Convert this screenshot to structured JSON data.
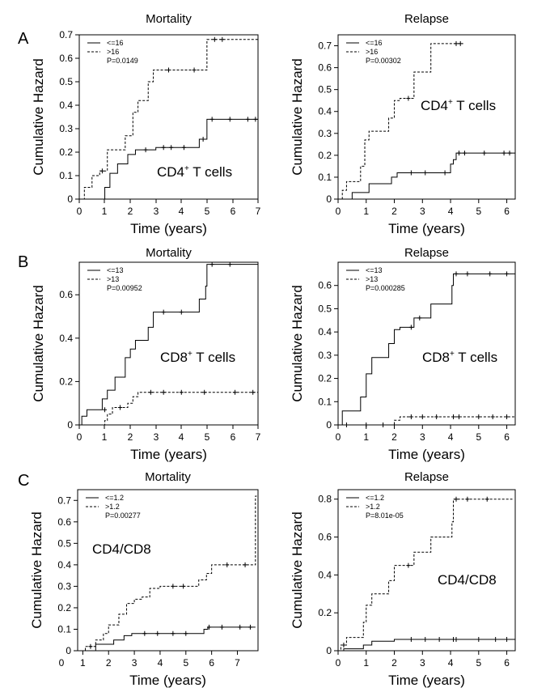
{
  "panels": [
    "A",
    "B",
    "C"
  ],
  "chart_data": [
    {
      "type": "line",
      "panel": "A",
      "title": "Mortality",
      "xlabel": "Time (years)",
      "ylabel": "Cumulative Hazard",
      "xlim": [
        0,
        7
      ],
      "ylim": [
        0,
        0.7
      ],
      "xticks": [
        0,
        1,
        2,
        3,
        4,
        5,
        6,
        7
      ],
      "yticks": [
        0,
        0.1,
        0.2,
        0.3,
        0.4,
        0.5,
        0.6,
        0.7
      ],
      "ytick_labels": [
        "0",
        "0.1",
        "0.2",
        "0.3",
        "0.4",
        "0.5",
        "0.6",
        "0.7"
      ],
      "legend_position": "top-left",
      "pvalue": "P=0.0149",
      "cell_label": "CD4",
      "cell_sup": "+",
      "cell_suffix": " T cells",
      "series": [
        {
          "name": "<=16",
          "style": "solid",
          "x": [
            0,
            1,
            1.2,
            1.5,
            1.9,
            2.2,
            3.0,
            4.7,
            5.0,
            7.0
          ],
          "y": [
            0,
            0.05,
            0.11,
            0.15,
            0.19,
            0.21,
            0.22,
            0.255,
            0.34,
            0.34
          ],
          "censored": [
            [
              2.6,
              0.21
            ],
            [
              3.3,
              0.22
            ],
            [
              3.6,
              0.22
            ],
            [
              4.1,
              0.22
            ],
            [
              4.85,
              0.255
            ],
            [
              5.2,
              0.34
            ],
            [
              5.9,
              0.34
            ],
            [
              6.6,
              0.34
            ],
            [
              6.9,
              0.34
            ]
          ]
        },
        {
          "name": ">16",
          "style": "dashed",
          "x": [
            0,
            0.2,
            0.5,
            0.8,
            1.1,
            1.8,
            2.1,
            2.3,
            2.7,
            2.9,
            5.0,
            7.0
          ],
          "y": [
            0,
            0.05,
            0.1,
            0.12,
            0.21,
            0.27,
            0.37,
            0.42,
            0.5,
            0.55,
            0.68,
            0.68
          ],
          "censored": [
            [
              0.9,
              0.12
            ],
            [
              3.5,
              0.55
            ],
            [
              4.5,
              0.55
            ],
            [
              5.3,
              0.68
            ],
            [
              5.6,
              0.68
            ]
          ]
        }
      ]
    },
    {
      "type": "line",
      "panel": "A",
      "title": "Relapse",
      "xlabel": "Time (years)",
      "ylabel": "Cumulative Hazard",
      "xlim": [
        0,
        6.3
      ],
      "ylim": [
        0,
        0.75
      ],
      "xticks": [
        0,
        1,
        2,
        3,
        4,
        5,
        6
      ],
      "yticks": [
        0,
        0.1,
        0.2,
        0.3,
        0.4,
        0.5,
        0.6,
        0.7
      ],
      "ytick_labels": [
        "0",
        "0.1",
        "0.2",
        "0.3",
        "0.4",
        "0.5",
        "0.6",
        "0.7"
      ],
      "legend_position": "top-left",
      "pvalue": "P=0.00302",
      "cell_label": "CD4",
      "cell_sup": "+",
      "cell_suffix": " T cells",
      "series": [
        {
          "name": "<=16",
          "style": "solid",
          "x": [
            0,
            0.5,
            1.1,
            1.9,
            2.1,
            4.0,
            4.1,
            4.2,
            6.3
          ],
          "y": [
            0,
            0.03,
            0.07,
            0.1,
            0.12,
            0.16,
            0.18,
            0.21,
            0.21
          ],
          "censored": [
            [
              2.6,
              0.12
            ],
            [
              3.1,
              0.12
            ],
            [
              3.8,
              0.12
            ],
            [
              4.3,
              0.21
            ],
            [
              4.5,
              0.21
            ],
            [
              5.2,
              0.21
            ],
            [
              5.9,
              0.21
            ],
            [
              6.1,
              0.21
            ]
          ]
        },
        {
          "name": ">16",
          "style": "dashed",
          "x": [
            0,
            0.15,
            0.3,
            0.8,
            0.95,
            1.1,
            1.8,
            2.0,
            2.2,
            2.7,
            3.3,
            4.1,
            4.45
          ],
          "y": [
            0,
            0.04,
            0.08,
            0.15,
            0.27,
            0.31,
            0.37,
            0.45,
            0.46,
            0.58,
            0.71,
            0.71,
            0.71
          ],
          "censored": [
            [
              2.5,
              0.46
            ],
            [
              4.2,
              0.71
            ],
            [
              4.35,
              0.71
            ]
          ]
        }
      ]
    },
    {
      "type": "line",
      "panel": "B",
      "title": "Mortality",
      "xlabel": "Time (years)",
      "ylabel": "Cumulative Hazard",
      "xlim": [
        0,
        7
      ],
      "ylim": [
        0,
        0.75
      ],
      "xticks": [
        0,
        1,
        2,
        3,
        4,
        5,
        6,
        7
      ],
      "yticks": [
        0,
        0.2,
        0.4,
        0.6
      ],
      "ytick_labels": [
        "0",
        "0.2",
        "0.4",
        "0.6"
      ],
      "legend_position": "top-left",
      "pvalue": "P=0.00952",
      "cell_label": "CD8",
      "cell_sup": "+",
      "cell_suffix": " T cells",
      "series": [
        {
          "name": "<=13",
          "style": "solid",
          "x": [
            0,
            0.1,
            0.3,
            0.9,
            1.1,
            1.4,
            1.8,
            2.0,
            2.2,
            2.7,
            2.9,
            4.7,
            4.95,
            5.0,
            7.0
          ],
          "y": [
            0,
            0.04,
            0.07,
            0.12,
            0.16,
            0.22,
            0.31,
            0.35,
            0.39,
            0.45,
            0.52,
            0.58,
            0.64,
            0.74,
            0.74
          ],
          "censored": [
            [
              1.0,
              0.07
            ],
            [
              3.3,
              0.52
            ],
            [
              4.0,
              0.52
            ],
            [
              5.2,
              0.74
            ],
            [
              5.9,
              0.74
            ]
          ]
        },
        {
          "name": ">13",
          "style": "dashed",
          "x": [
            0,
            1.0,
            1.1,
            1.3,
            1.9,
            2.1,
            2.3,
            7.0
          ],
          "y": [
            0,
            0.02,
            0.05,
            0.08,
            0.1,
            0.13,
            0.15,
            0.15
          ],
          "censored": [
            [
              1.6,
              0.08
            ],
            [
              2.8,
              0.15
            ],
            [
              3.3,
              0.15
            ],
            [
              4.0,
              0.15
            ],
            [
              4.9,
              0.15
            ],
            [
              6.1,
              0.15
            ],
            [
              6.8,
              0.15
            ]
          ]
        }
      ]
    },
    {
      "type": "line",
      "panel": "B",
      "title": "Relapse",
      "xlabel": "Time (years)",
      "ylabel": "Cumulative Hazard",
      "xlim": [
        0,
        6.3
      ],
      "ylim": [
        0,
        0.7
      ],
      "xticks": [
        0,
        1,
        2,
        3,
        4,
        5,
        6
      ],
      "yticks": [
        0,
        0.1,
        0.2,
        0.3,
        0.4,
        0.5,
        0.6
      ],
      "ytick_labels": [
        "0",
        "0.1",
        "0.2",
        "0.3",
        "0.4",
        "0.5",
        "0.6"
      ],
      "legend_position": "top-left",
      "pvalue": "P=0.000285",
      "cell_label": "CD8",
      "cell_sup": "+",
      "cell_suffix": " T cells",
      "series": [
        {
          "name": "<=13",
          "style": "solid",
          "x": [
            0,
            0.15,
            0.8,
            1.0,
            1.2,
            1.8,
            2.0,
            2.2,
            2.7,
            3.3,
            4.05,
            4.1,
            6.3
          ],
          "y": [
            0,
            0.06,
            0.12,
            0.22,
            0.29,
            0.35,
            0.41,
            0.42,
            0.46,
            0.52,
            0.6,
            0.65,
            0.65
          ],
          "censored": [
            [
              2.6,
              0.42
            ],
            [
              2.9,
              0.46
            ],
            [
              4.2,
              0.65
            ],
            [
              4.6,
              0.65
            ],
            [
              5.4,
              0.65
            ],
            [
              6.0,
              0.65
            ]
          ]
        },
        {
          "name": ">13",
          "style": "dashed",
          "x": [
            0,
            0.1,
            2.0,
            2.2,
            6.3
          ],
          "y": [
            0,
            0.0,
            0.02,
            0.035,
            0.035
          ],
          "censored": [
            [
              0.3,
              0.0
            ],
            [
              1.0,
              0.0
            ],
            [
              1.6,
              0.0
            ],
            [
              2.6,
              0.035
            ],
            [
              3.0,
              0.035
            ],
            [
              3.5,
              0.035
            ],
            [
              4.1,
              0.035
            ],
            [
              4.3,
              0.035
            ],
            [
              5.0,
              0.035
            ],
            [
              5.5,
              0.035
            ],
            [
              6.0,
              0.035
            ]
          ]
        }
      ]
    },
    {
      "type": "line",
      "panel": "C",
      "title": "Mortality",
      "xlabel": "Time (years)",
      "ylabel": "Cumulative Hazard",
      "xlim": [
        0.8,
        7.8
      ],
      "ylim": [
        0,
        0.75
      ],
      "xticks": [
        1,
        2,
        3,
        4,
        5,
        6,
        7
      ],
      "yticks": [
        0,
        0.1,
        0.2,
        0.3,
        0.4,
        0.5,
        0.6,
        0.7
      ],
      "ytick_labels": [
        "0",
        "0.1",
        "0.2",
        "0.3",
        "0.4",
        "0.5",
        "0.6",
        "0.7"
      ],
      "outside_tick": "0",
      "legend_position": "top-left",
      "pvalue": "P=0.00277",
      "cell_label": "CD4/CD8",
      "cell_sup": "",
      "cell_suffix": "",
      "series": [
        {
          "name": "<=1.2",
          "style": "solid",
          "x": [
            0.8,
            1.5,
            2.2,
            2.6,
            2.9,
            5.7,
            5.85,
            7.7
          ],
          "y": [
            0,
            0.03,
            0.05,
            0.07,
            0.08,
            0.1,
            0.11,
            0.11
          ],
          "censored": [
            [
              3.4,
              0.08
            ],
            [
              3.9,
              0.08
            ],
            [
              4.5,
              0.08
            ],
            [
              5.0,
              0.08
            ],
            [
              5.9,
              0.11
            ],
            [
              6.4,
              0.11
            ],
            [
              7.1,
              0.11
            ],
            [
              7.5,
              0.11
            ]
          ]
        },
        {
          "name": ">1.2",
          "style": "dashed",
          "x": [
            0.8,
            1.1,
            1.5,
            1.8,
            2.0,
            2.4,
            2.7,
            3.0,
            3.3,
            3.6,
            4.0,
            5.5,
            5.8,
            6.0,
            7.6,
            7.7,
            7.75
          ],
          "y": [
            0,
            0.02,
            0.05,
            0.08,
            0.12,
            0.17,
            0.22,
            0.24,
            0.25,
            0.29,
            0.3,
            0.33,
            0.36,
            0.4,
            0.4,
            0.72,
            0.72
          ],
          "censored": [
            [
              1.3,
              0.02
            ],
            [
              4.5,
              0.3
            ],
            [
              4.9,
              0.3
            ],
            [
              6.6,
              0.4
            ],
            [
              7.3,
              0.4
            ]
          ]
        }
      ]
    },
    {
      "type": "line",
      "panel": "C",
      "title": "Relapse",
      "xlabel": "Time (years)",
      "ylabel": "Cumulative Hazard",
      "xlim": [
        0,
        6.3
      ],
      "ylim": [
        0,
        0.85
      ],
      "xticks": [
        0,
        1,
        2,
        3,
        4,
        5,
        6
      ],
      "yticks": [
        0,
        0.2,
        0.4,
        0.6,
        0.8
      ],
      "ytick_labels": [
        "0",
        "0.2",
        "0.4",
        "0.6",
        "0.8"
      ],
      "legend_position": "top-left",
      "pvalue": "P=8.01e-05",
      "cell_label": "CD4/CD8",
      "cell_sup": "",
      "cell_suffix": "",
      "series": [
        {
          "name": "<=1.2",
          "style": "solid",
          "x": [
            0,
            0.2,
            0.9,
            1.2,
            2.0,
            6.3
          ],
          "y": [
            0,
            0.01,
            0.03,
            0.05,
            0.06,
            0.06
          ],
          "censored": [
            [
              2.6,
              0.06
            ],
            [
              3.1,
              0.06
            ],
            [
              3.6,
              0.06
            ],
            [
              4.1,
              0.06
            ],
            [
              4.2,
              0.06
            ],
            [
              5.0,
              0.06
            ],
            [
              5.6,
              0.06
            ],
            [
              6.0,
              0.06
            ]
          ]
        },
        {
          "name": ">1.2",
          "style": "dashed",
          "x": [
            0,
            0.1,
            0.3,
            0.9,
            1.0,
            1.2,
            1.8,
            2.0,
            2.7,
            3.3,
            4.05,
            4.1,
            6.2
          ],
          "y": [
            0,
            0.03,
            0.07,
            0.15,
            0.24,
            0.3,
            0.37,
            0.45,
            0.52,
            0.6,
            0.68,
            0.8,
            0.8
          ],
          "censored": [
            [
              0.2,
              0.03
            ],
            [
              2.5,
              0.45
            ],
            [
              4.2,
              0.8
            ],
            [
              4.6,
              0.8
            ],
            [
              5.3,
              0.8
            ]
          ]
        }
      ]
    }
  ]
}
